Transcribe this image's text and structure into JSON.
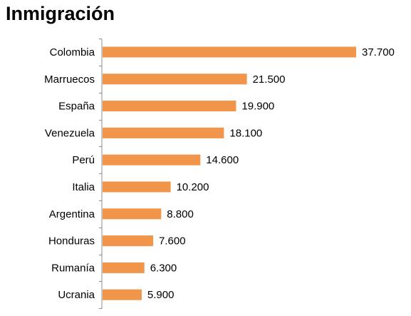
{
  "chart_data": {
    "type": "bar",
    "orientation": "horizontal",
    "title": "Inmigración",
    "xlabel": "",
    "ylabel": "",
    "categories": [
      "Colombia",
      "Marruecos",
      "España",
      "Venezuela",
      "Perú",
      "Italia",
      "Argentina",
      "Honduras",
      "Rumanía",
      "Ucrania"
    ],
    "values": [
      37700,
      21500,
      19900,
      18100,
      14600,
      10200,
      8800,
      7600,
      6300,
      5900
    ],
    "value_labels": [
      "37.700",
      "21.500",
      "19.900",
      "18.100",
      "14.600",
      "10.200",
      "8.800",
      "7.600",
      "6.300",
      "5.900"
    ],
    "xlim": [
      0,
      37700
    ],
    "grid": false,
    "legend": "none",
    "bar_color": "#f0954a"
  }
}
